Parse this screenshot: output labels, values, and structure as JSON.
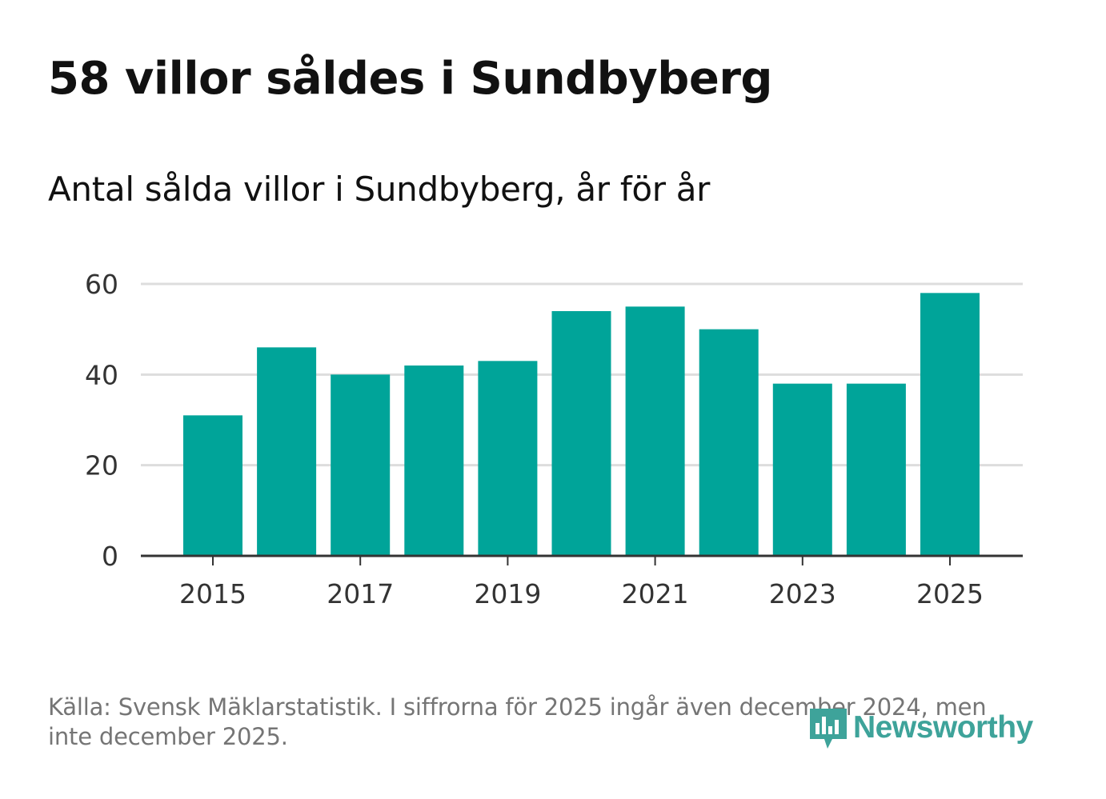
{
  "title": "58 villor såldes i Sundbyberg",
  "subtitle": "Antal sålda villor i Sundbyberg, år för år",
  "source": "Källa: Svensk Mäklarstatistik. I siffrorna för 2025 ingår även december 2024, men inte december 2025.",
  "logo": {
    "text": "Newsworthy",
    "icon": "newsworthy-logo-icon",
    "color": "#3ea39a"
  },
  "colors": {
    "bar": "#00a499",
    "grid": "#dddddd",
    "axis": "#333333",
    "tick_text": "#333333"
  },
  "chart_data": {
    "type": "bar",
    "title": "Antal sålda villor i Sundbyberg, år för år",
    "xlabel": "",
    "ylabel": "",
    "categories": [
      "2015",
      "2016",
      "2017",
      "2018",
      "2019",
      "2020",
      "2021",
      "2022",
      "2023",
      "2024",
      "2025"
    ],
    "values": [
      31,
      46,
      40,
      42,
      43,
      54,
      55,
      50,
      38,
      38,
      58
    ],
    "ylim": [
      0,
      60
    ],
    "yticks": [
      0,
      20,
      40,
      60
    ],
    "xticks": [
      "2015",
      "2017",
      "2019",
      "2021",
      "2023",
      "2025"
    ],
    "grid": true
  }
}
